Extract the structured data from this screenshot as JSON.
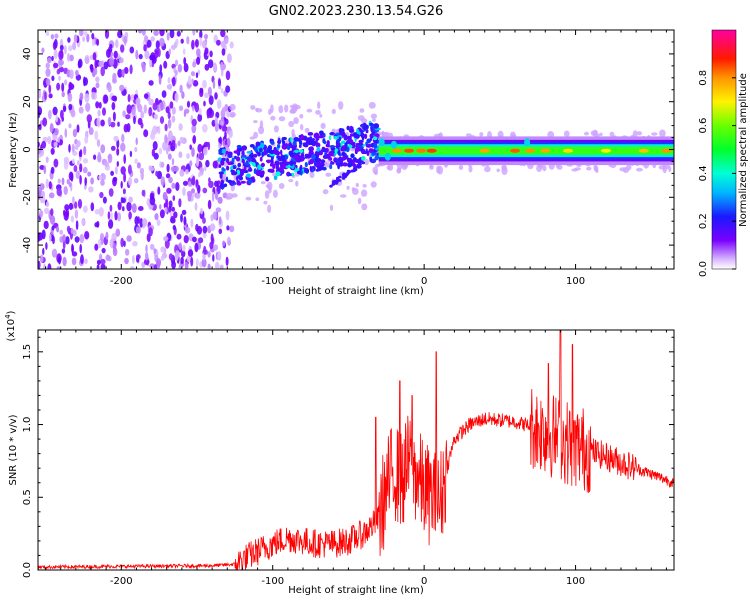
{
  "title": "GN02.2023.230.13.54.G26",
  "chart_data": [
    {
      "type": "heatmap",
      "name": "spectrogram",
      "xlabel": "Height of straight line (km)",
      "ylabel": "Frequency (Hz)",
      "xlim": [
        -255,
        165
      ],
      "ylim": [
        -50,
        50
      ],
      "xticks": [
        -200,
        -100,
        0,
        100
      ],
      "yticks": [
        -40,
        -20,
        0,
        20,
        40
      ],
      "colorbar": {
        "label": "Normalized spectral amplitude",
        "range": [
          0,
          1
        ],
        "ticks": [
          "0.0",
          "0.2",
          "0.4",
          "0.6",
          "0.8"
        ],
        "colormap": "hsv-like: white at 0, purple-blue-cyan-green-yellow-red-magenta toward 1"
      },
      "features": [
        {
          "name": "diffuse noise region",
          "x_range": [
            -255,
            -135
          ],
          "y_range": [
            -50,
            50
          ],
          "amplitude": 0.08
        },
        {
          "name": "main signal band",
          "x_range": [
            -135,
            165
          ],
          "center_hz": 0,
          "amplitude_peak": 0.85
        },
        {
          "name": "scattered band",
          "x_range": [
            -135,
            -30
          ],
          "y_range": [
            -15,
            10
          ],
          "amplitude": 0.25
        },
        {
          "name": "narrow carrier",
          "x_range": [
            -30,
            165
          ],
          "y_range": [
            -3,
            3
          ],
          "amplitude": 0.6
        }
      ]
    },
    {
      "type": "line",
      "name": "snr",
      "xlabel": "Height of straight line (km)",
      "ylabel": "SNR (10 * v/v)",
      "y_multiplier": "(x10",
      "y_multiplier_exp": "4",
      "y_multiplier_close": ")",
      "xlim": [
        -255,
        165
      ],
      "ylim": [
        0,
        1.65
      ],
      "xticks": [
        -200,
        -100,
        0,
        100
      ],
      "yticks": [
        "0.0",
        "0.5",
        "1.0",
        "1.5"
      ],
      "line_color": "#ff0000",
      "envelope": [
        [
          -255,
          0.02
        ],
        [
          -140,
          0.03
        ],
        [
          -125,
          0.04
        ],
        [
          -115,
          0.1
        ],
        [
          -100,
          0.18
        ],
        [
          -90,
          0.22
        ],
        [
          -80,
          0.2
        ],
        [
          -70,
          0.18
        ],
        [
          -60,
          0.18
        ],
        [
          -50,
          0.2
        ],
        [
          -40,
          0.25
        ],
        [
          -30,
          0.35
        ],
        [
          -25,
          0.55
        ],
        [
          -20,
          0.7
        ],
        [
          -15,
          0.6
        ],
        [
          -10,
          0.75
        ],
        [
          -5,
          0.65
        ],
        [
          0,
          0.55
        ],
        [
          5,
          0.5
        ],
        [
          10,
          0.45
        ],
        [
          15,
          0.7
        ],
        [
          20,
          0.9
        ],
        [
          30,
          1.0
        ],
        [
          40,
          1.04
        ],
        [
          50,
          1.03
        ],
        [
          60,
          1.02
        ],
        [
          70,
          0.99
        ],
        [
          80,
          0.95
        ],
        [
          90,
          0.9
        ],
        [
          100,
          0.85
        ],
        [
          110,
          0.82
        ],
        [
          120,
          0.78
        ],
        [
          130,
          0.74
        ],
        [
          140,
          0.7
        ],
        [
          150,
          0.66
        ],
        [
          160,
          0.62
        ],
        [
          165,
          0.6
        ]
      ],
      "peaks": [
        [
          -32,
          1.05
        ],
        [
          -16,
          1.3
        ],
        [
          -8,
          1.2
        ],
        [
          8,
          1.5
        ],
        [
          82,
          1.42
        ],
        [
          90,
          1.65
        ],
        [
          98,
          1.55
        ]
      ]
    }
  ]
}
